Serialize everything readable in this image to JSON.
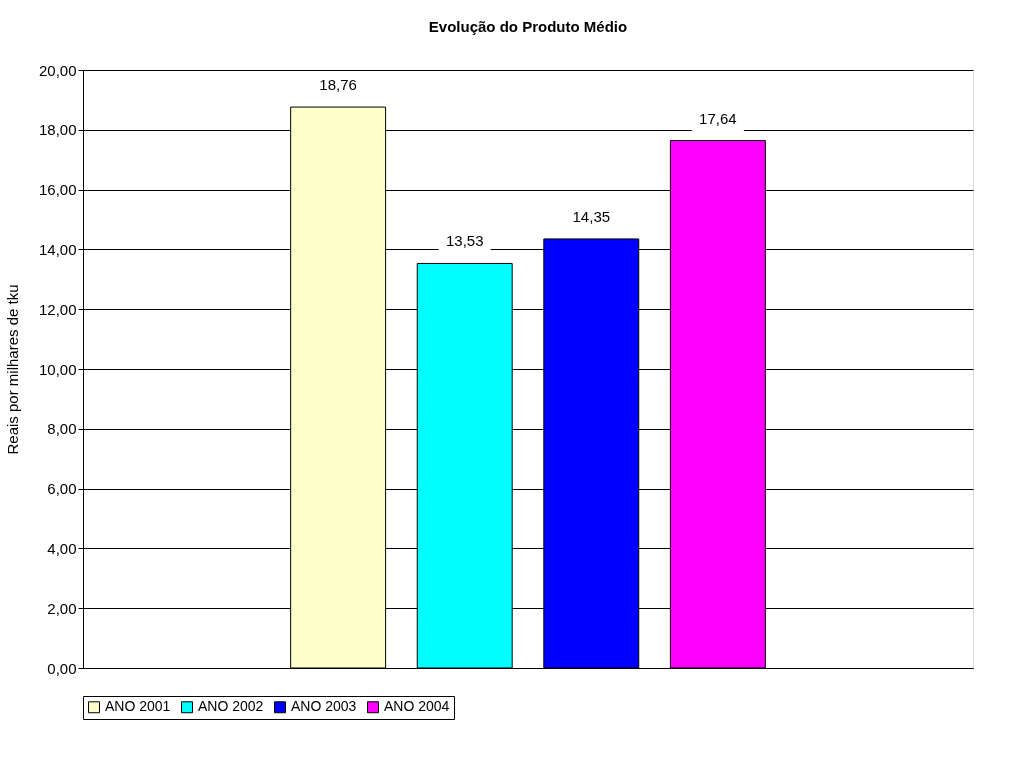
{
  "chart_data": {
    "type": "bar",
    "title": "Evolução do Produto Médio",
    "ylabel": "Reais por milhares de tku",
    "categories": [
      null
    ],
    "series": [
      {
        "name": "ANO 2001",
        "color": "#ffffcc",
        "values": [
          18.76
        ],
        "value_labels": [
          "18,76"
        ]
      },
      {
        "name": "ANO 2002",
        "color": "#00ffff",
        "values": [
          13.53
        ],
        "value_labels": [
          "13,53"
        ]
      },
      {
        "name": "ANO 2003",
        "color": "#0000ff",
        "values": [
          14.35
        ],
        "value_labels": [
          "14,35"
        ]
      },
      {
        "name": "ANO 2004",
        "color": "#ff00ff",
        "values": [
          17.64
        ],
        "value_labels": [
          "17,64"
        ]
      }
    ],
    "ylim": [
      0,
      20
    ],
    "yticks": [
      {
        "value": 0,
        "label": "0,00"
      },
      {
        "value": 2,
        "label": "2,00"
      },
      {
        "value": 4,
        "label": "4,00"
      },
      {
        "value": 6,
        "label": "6,00"
      },
      {
        "value": 8,
        "label": "8,00"
      },
      {
        "value": 10,
        "label": "10,00"
      },
      {
        "value": 12,
        "label": "12,00"
      },
      {
        "value": 14,
        "label": "14,00"
      },
      {
        "value": 16,
        "label": "16,00"
      },
      {
        "value": 18,
        "label": "18,00"
      },
      {
        "value": 20,
        "label": "20,00"
      }
    ],
    "grid": "y",
    "legend": "bottom",
    "tick_labels": "y"
  }
}
